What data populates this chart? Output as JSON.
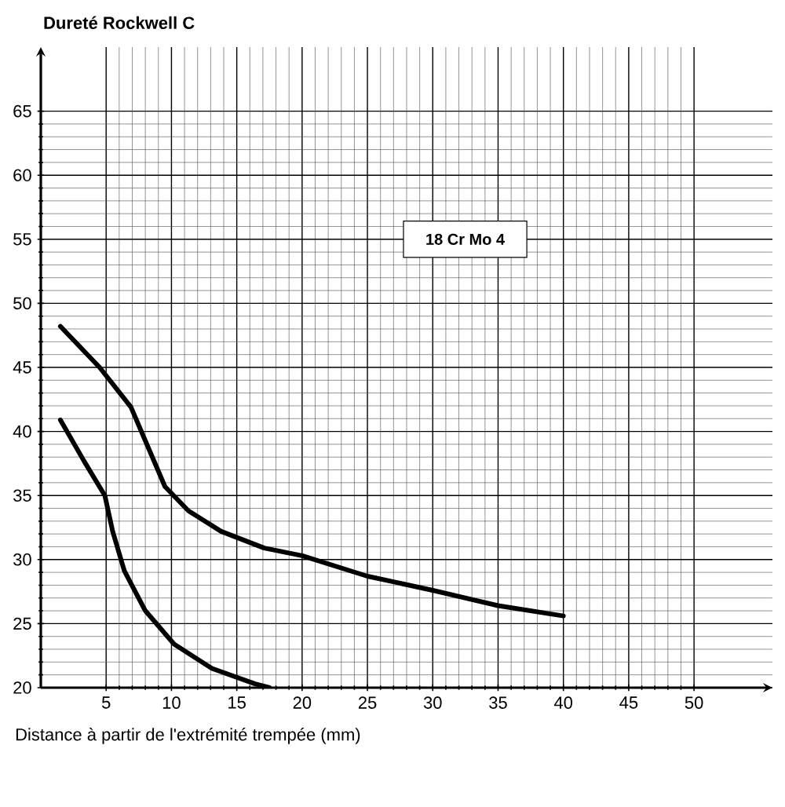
{
  "chart_data": {
    "type": "line",
    "ylabel": "Dureté Rockwell C",
    "xlabel": "Distance à partir de l'extrémité trempée (mm)",
    "annotations": [
      "18 Cr Mo 4"
    ],
    "xlim": [
      0,
      56
    ],
    "ylim": [
      20,
      70
    ],
    "xticks": [
      5,
      10,
      15,
      20,
      25,
      30,
      35,
      40,
      45,
      50
    ],
    "yticks": [
      20,
      25,
      30,
      35,
      40,
      45,
      50,
      55,
      60,
      65
    ],
    "grid": true,
    "series": [
      {
        "color": "#000000",
        "x": [
          1.5,
          4.5,
          6.9,
          9.5,
          11.3,
          13.8,
          17.1,
          20,
          25,
          30,
          35,
          40
        ],
        "values": [
          48.2,
          45.0,
          41.9,
          35.7,
          33.8,
          32.2,
          30.9,
          30.3,
          28.7,
          27.6,
          26.4,
          25.6
        ]
      },
      {
        "color": "#000000",
        "x": [
          1.5,
          3.3,
          4.9,
          5.5,
          6.4,
          8,
          10.2,
          13.1,
          16.4,
          17.5
        ],
        "values": [
          40.9,
          37.7,
          35.0,
          32.2,
          29.1,
          26.0,
          23.4,
          21.5,
          20.3,
          20
        ]
      }
    ]
  }
}
